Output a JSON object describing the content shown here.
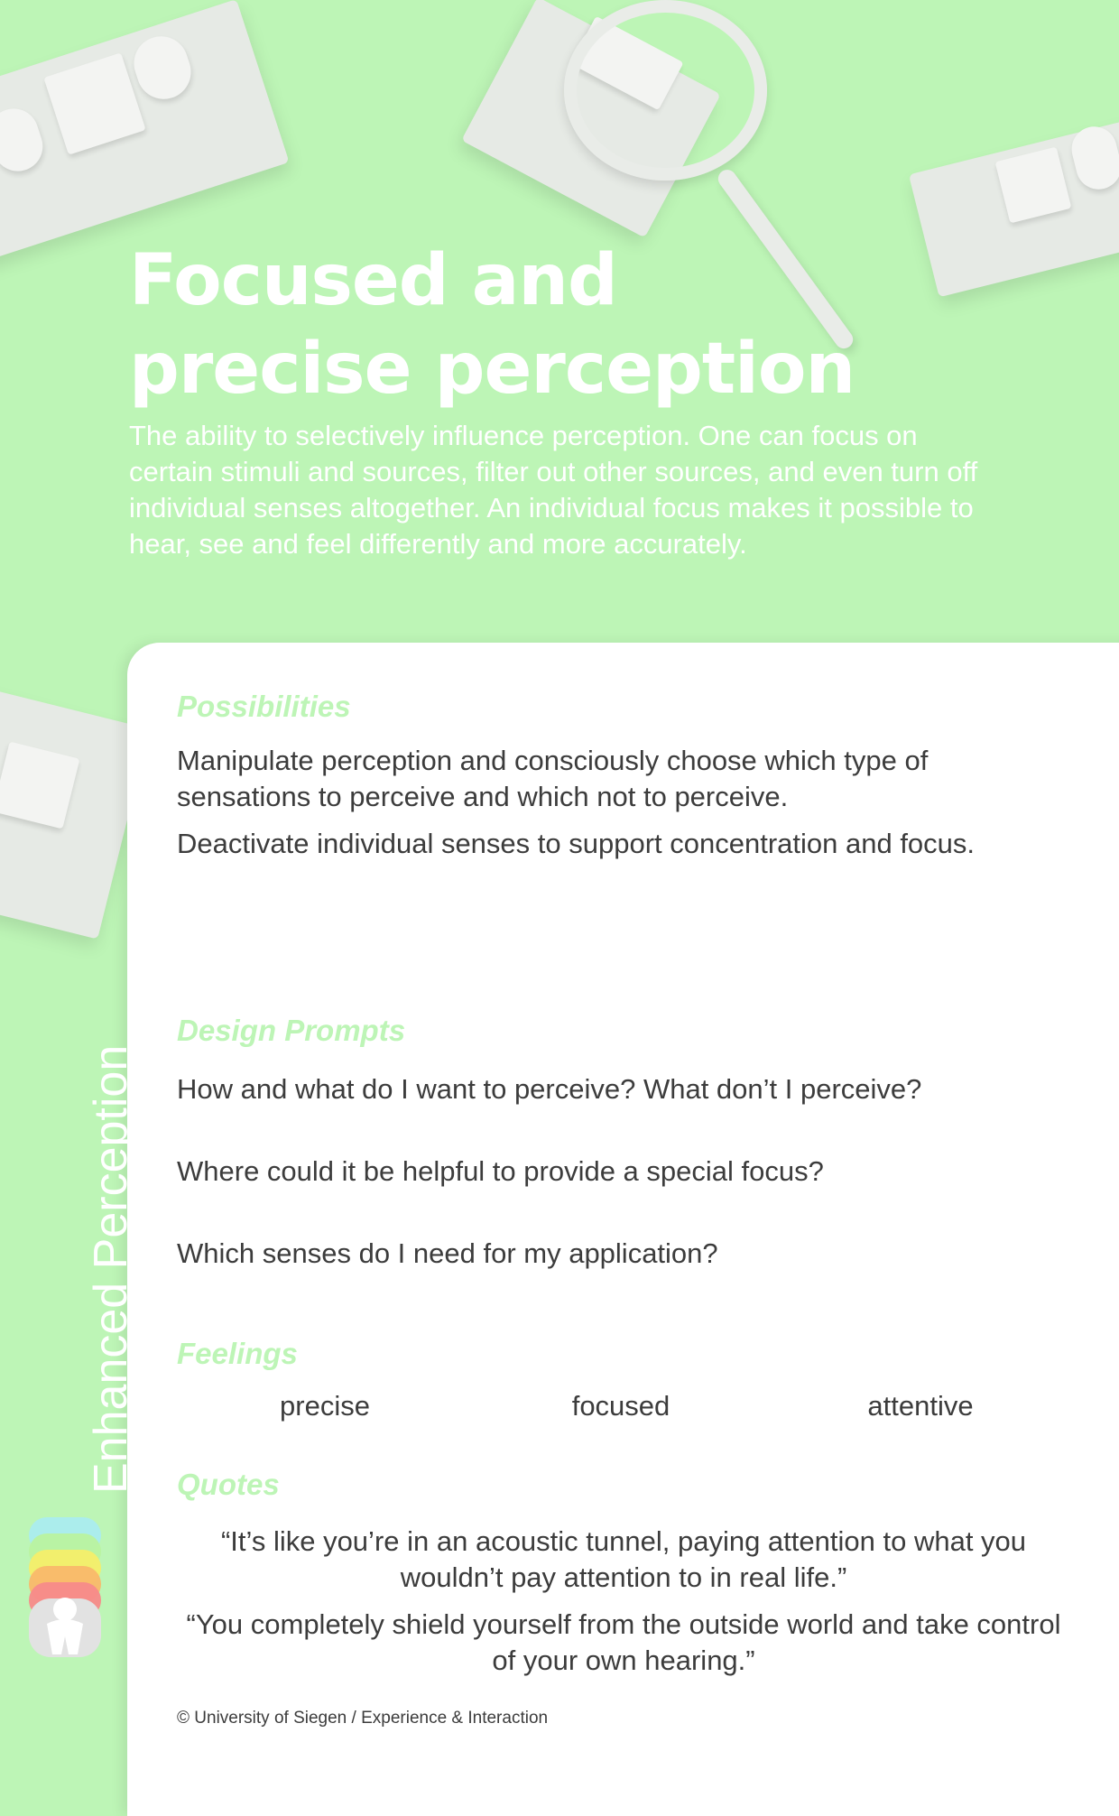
{
  "header": {
    "title_line1": "Focused and",
    "title_line2": "precise perception",
    "description": "The ability to selectively influence perception. One can focus on certain stimuli and sources, filter out other sources, and even turn off individual senses altogether. An individual focus makes it possible to hear, see and feel differently and more accurately."
  },
  "possibilities": {
    "label": "Possibilities",
    "items": [
      "Manipulate perception and consciously choose which type of sensations to perceive and which not to perceive.",
      "Deactivate individual senses to support concentration and focus."
    ]
  },
  "design_prompts": {
    "label": "Design Prompts",
    "items": [
      "How and what do I want to perceive? What don’t I perceive?",
      "Where could it be helpful to provide a special focus?",
      "Which senses do I need for my application?"
    ]
  },
  "feelings": {
    "label": "Feelings",
    "items": [
      "precise",
      "focused",
      "attentive"
    ]
  },
  "quotes": {
    "label": "Quotes",
    "items": [
      "“It’s like you’re in an acoustic tunnel, paying attention to what you wouldn’t pay attention to in real life.”",
      "“You completely shield yourself from the outside world and take control of your own hearing.”"
    ]
  },
  "footer": {
    "copyright": "© University of Siegen / Experience & Interaction"
  },
  "side": {
    "category_label": "Enhanced Perception"
  },
  "colors": {
    "background": "#bdf5b6",
    "label": "#bdf5b6",
    "text": "#3c3c3c"
  }
}
